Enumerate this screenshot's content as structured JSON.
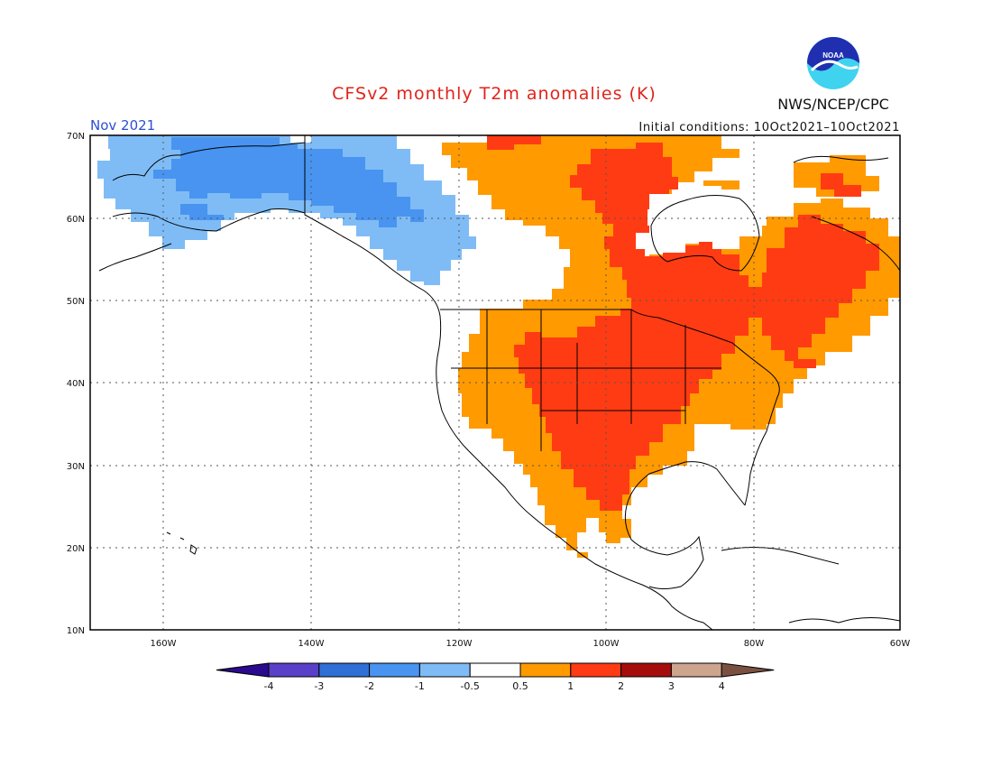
{
  "header": {
    "title": "CFSv2 monthly T2m anomalies (K)",
    "month": "Nov 2021",
    "initial_conditions": "Initial conditions: 10Oct2021–10Oct2021",
    "agency": "NWS/NCEP/CPC",
    "logo_text": "NOAA"
  },
  "map": {
    "lat_labels": [
      "70N",
      "60N",
      "50N",
      "40N",
      "30N",
      "20N",
      "10N"
    ],
    "lon_labels": [
      "160W",
      "140W",
      "120W",
      "100W",
      "80W",
      "60W"
    ]
  },
  "colorbar": {
    "labels": [
      "-4",
      "-3",
      "-2",
      "-1",
      "-0.5",
      "0.5",
      "1",
      "2",
      "3",
      "4"
    ],
    "colors": [
      "#2b0a8f",
      "#5a40c8",
      "#2f6fd6",
      "#4894f0",
      "#7fbcf6",
      "#ffffff",
      "#ff9a00",
      "#ff3b14",
      "#a50d0d",
      "#cda58f",
      "#7a5140"
    ]
  },
  "colors": {
    "cold_strong": "#4894f0",
    "cold_weak": "#7fbcf6",
    "warm_weak": "#ff9a00",
    "warm_strong": "#ff3b14"
  }
}
